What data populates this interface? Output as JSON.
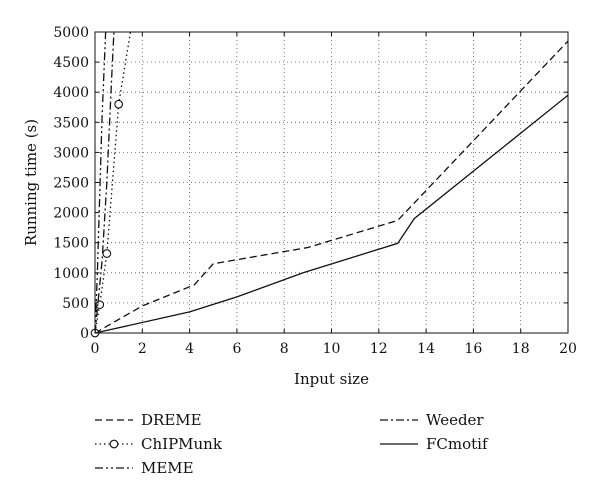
{
  "chart_data": {
    "type": "line",
    "title": "",
    "xlabel": "Input size",
    "ylabel": "Running time (s)",
    "xlim": [
      0,
      20
    ],
    "ylim": [
      0,
      5000
    ],
    "x_ticks": [
      0,
      2,
      4,
      6,
      8,
      10,
      12,
      14,
      16,
      18,
      20
    ],
    "y_ticks": [
      0,
      500,
      1000,
      1500,
      2000,
      2500,
      3000,
      3500,
      4000,
      4500,
      5000
    ],
    "grid": true,
    "legend_placement": "below",
    "series": [
      {
        "name": "DREME",
        "style": "dashed",
        "marker": "none",
        "x": [
          0,
          2,
          4.2,
          5,
          9,
          12.8,
          20
        ],
        "y": [
          0,
          450,
          800,
          1150,
          1420,
          1870,
          4850
        ]
      },
      {
        "name": "ChIPMunk",
        "style": "dotted",
        "marker": "circle",
        "x": [
          0,
          0.2,
          0.5,
          1.0,
          1.5
        ],
        "y": [
          0,
          470,
          1320,
          3800,
          5000
        ],
        "markers_x": [
          0,
          0.2,
          0.5,
          1.0
        ],
        "markers_y": [
          0,
          470,
          1320,
          3800
        ]
      },
      {
        "name": "MEME",
        "style": "dashdotdot",
        "marker": "none",
        "x": [
          0,
          0.1,
          0.2,
          0.3,
          0.45
        ],
        "y": [
          0,
          1000,
          2300,
          3600,
          5000
        ]
      },
      {
        "name": "Weeder",
        "style": "dashdot",
        "marker": "none",
        "x": [
          0,
          0.3,
          0.5,
          0.7,
          0.8
        ],
        "y": [
          0,
          1200,
          2500,
          4200,
          5000
        ]
      },
      {
        "name": "FCmotif",
        "style": "solid",
        "marker": "none",
        "x": [
          0,
          4,
          6,
          8.8,
          12.8,
          13.5,
          20
        ],
        "y": [
          0,
          350,
          600,
          1000,
          1490,
          1900,
          3950
        ]
      }
    ]
  }
}
